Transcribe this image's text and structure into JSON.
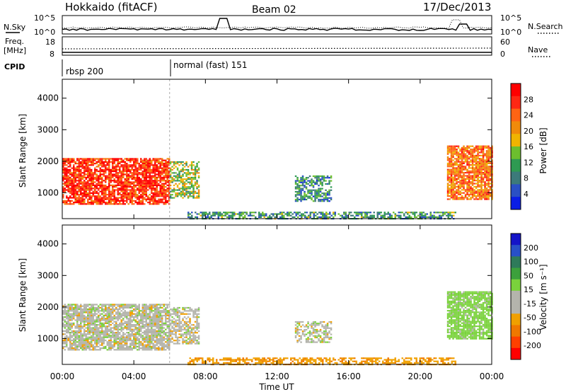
{
  "header": {
    "title": "Hokkaido (fitACF)",
    "beam": "Beam 02",
    "date": "17/Dec/2013"
  },
  "aux_panels": {
    "nsky_label": "N.Sky",
    "nsky_ticks": [
      "10^5",
      "10^0"
    ],
    "nsearch_label": "N.Search",
    "nsearch_ticks": [
      "10^5",
      "10^0"
    ],
    "freq_label_1": "Freq.",
    "freq_label_2": "[MHz]",
    "freq_ticks": [
      "18",
      "8"
    ],
    "nave_label": "Nave",
    "nave_ticks": [
      "60",
      "0"
    ],
    "cpid_label": "CPID",
    "cpid_segments": [
      {
        "name": "rbsp 200",
        "start_hour": 0
      },
      {
        "name": "normal (fast) 151",
        "start_hour": 6
      }
    ]
  },
  "chart_data": [
    {
      "type": "heatmap",
      "title": "",
      "xlabel": "Time UT",
      "ylabel": "Slant Range [km]",
      "xlim": [
        0,
        24
      ],
      "ylim": [
        180,
        4600
      ],
      "x_ticks": [
        "00:00",
        "04:00",
        "08:00",
        "12:00",
        "16:00",
        "20:00",
        "00:00"
      ],
      "y_ticks": [
        "1000",
        "2000",
        "3000",
        "4000"
      ],
      "colorbar_label": "Power [dB]",
      "colorbar_ticks": [
        "4",
        "8",
        "12",
        "16",
        "20",
        "24",
        "28"
      ],
      "colorbar_colors": [
        "#0a1ee6",
        "#2a50c4",
        "#3c7a7a",
        "#2e9a52",
        "#6cbe2e",
        "#f0b400",
        "#f08a0a",
        "#ff6414",
        "#ff2814",
        "#ff0000"
      ],
      "echo_regions": [
        {
          "t0": 0.0,
          "t1": 6.0,
          "r0": 650,
          "r1": 2100,
          "level": 26
        },
        {
          "t0": 6.0,
          "t1": 7.6,
          "r0": 850,
          "r1": 2000,
          "level": 14
        },
        {
          "t0": 13.0,
          "t1": 15.0,
          "r0": 750,
          "r1": 1550,
          "level": 9
        },
        {
          "t0": 21.5,
          "t1": 24.0,
          "r0": 800,
          "r1": 2500,
          "level": 22
        },
        {
          "t0": 7.0,
          "t1": 22.0,
          "r0": 200,
          "r1": 400,
          "level": 10
        }
      ]
    },
    {
      "type": "heatmap",
      "title": "",
      "xlabel": "Time UT",
      "ylabel": "Slant Range [km]",
      "xlim": [
        0,
        24
      ],
      "ylim": [
        180,
        4600
      ],
      "x_ticks": [
        "00:00",
        "04:00",
        "08:00",
        "12:00",
        "16:00",
        "20:00",
        "00:00"
      ],
      "y_ticks": [
        "1000",
        "2000",
        "3000",
        "4000"
      ],
      "colorbar_label": "Velocity [m s⁻¹]",
      "colorbar_ticks": [
        "200",
        "100",
        "50",
        "15",
        "-15",
        "-50",
        "-100",
        "-200"
      ],
      "colorbar_colors": [
        "#1414c8",
        "#2850c8",
        "#2e7a5a",
        "#3ca03c",
        "#7ad23c",
        "#b4b4ac",
        "#b4b4ac",
        "#f0a000",
        "#f07800",
        "#ff4000",
        "#ff0000"
      ],
      "echo_regions": [
        {
          "t0": 0.0,
          "t1": 6.0,
          "r0": 650,
          "r1": 2100,
          "velocity": 0
        },
        {
          "t0": 6.0,
          "t1": 7.6,
          "r0": 850,
          "r1": 2000,
          "velocity": 0
        },
        {
          "t0": 13.0,
          "t1": 15.0,
          "r0": 900,
          "r1": 1550,
          "velocity": 0
        },
        {
          "t0": 21.5,
          "t1": 24.0,
          "r0": 1000,
          "r1": 2500,
          "velocity": 30
        },
        {
          "t0": 7.0,
          "t1": 22.0,
          "r0": 200,
          "r1": 400,
          "velocity": -40
        }
      ]
    }
  ]
}
